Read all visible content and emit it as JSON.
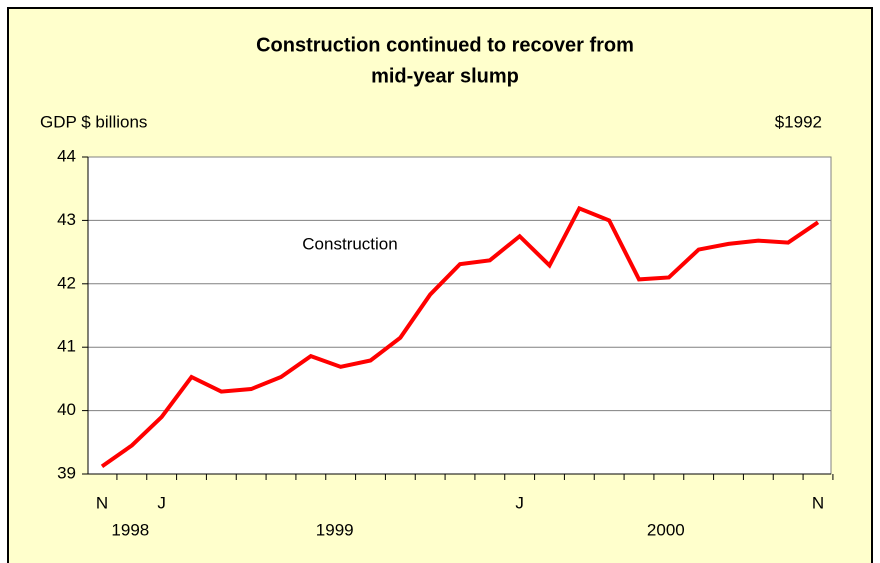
{
  "chart_data": {
    "type": "line",
    "title": "Construction continued to recover from",
    "title_line2": "mid-year slump",
    "y_axis_label": "GDP $ billions",
    "units_note": "$1992",
    "annotation": "Construction",
    "categories": [
      "N",
      null,
      "J",
      null,
      null,
      null,
      null,
      null,
      null,
      null,
      null,
      null,
      null,
      null,
      "J",
      null,
      null,
      null,
      null,
      null,
      null,
      null,
      null,
      null,
      "N"
    ],
    "year_labels": [
      "1998",
      "1999",
      "2000"
    ],
    "series": [
      {
        "name": "Construction",
        "color": "#ff0000",
        "values": [
          39.12,
          39.45,
          39.9,
          40.53,
          40.3,
          40.34,
          40.53,
          40.86,
          40.69,
          40.79,
          41.15,
          41.83,
          42.31,
          42.37,
          42.75,
          42.29,
          43.19,
          43.0,
          42.07,
          42.1,
          42.54,
          42.63,
          42.68,
          42.65,
          42.97
        ]
      }
    ],
    "ylim": [
      39,
      44
    ],
    "yticks": [
      39,
      40,
      41,
      42,
      43,
      44
    ],
    "grid": true
  }
}
